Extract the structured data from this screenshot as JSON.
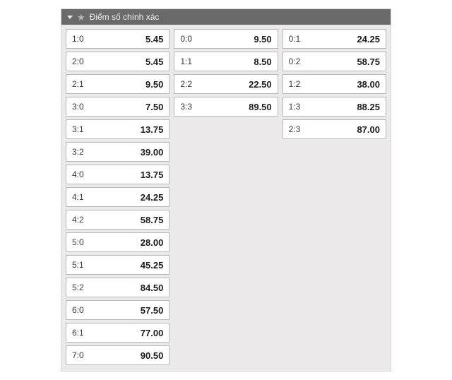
{
  "header": {
    "title": "Điểm số chính xác"
  },
  "columns": [
    [
      {
        "score": "1:0",
        "odds": "5.45"
      },
      {
        "score": "2:0",
        "odds": "5.45"
      },
      {
        "score": "2:1",
        "odds": "9.50"
      },
      {
        "score": "3:0",
        "odds": "7.50"
      },
      {
        "score": "3:1",
        "odds": "13.75"
      },
      {
        "score": "3:2",
        "odds": "39.00"
      },
      {
        "score": "4:0",
        "odds": "13.75"
      },
      {
        "score": "4:1",
        "odds": "24.25"
      },
      {
        "score": "4:2",
        "odds": "58.75"
      },
      {
        "score": "5:0",
        "odds": "28.00"
      },
      {
        "score": "5:1",
        "odds": "45.25"
      },
      {
        "score": "5:2",
        "odds": "84.50"
      },
      {
        "score": "6:0",
        "odds": "57.50"
      },
      {
        "score": "6:1",
        "odds": "77.00"
      },
      {
        "score": "7:0",
        "odds": "90.50"
      }
    ],
    [
      {
        "score": "0:0",
        "odds": "9.50"
      },
      {
        "score": "1:1",
        "odds": "8.50"
      },
      {
        "score": "2:2",
        "odds": "22.50"
      },
      {
        "score": "3:3",
        "odds": "89.50"
      }
    ],
    [
      {
        "score": "0:1",
        "odds": "24.25"
      },
      {
        "score": "0:2",
        "odds": "58.75"
      },
      {
        "score": "1:2",
        "odds": "38.00"
      },
      {
        "score": "1:3",
        "odds": "88.25"
      },
      {
        "score": "2:3",
        "odds": "87.00"
      }
    ]
  ]
}
